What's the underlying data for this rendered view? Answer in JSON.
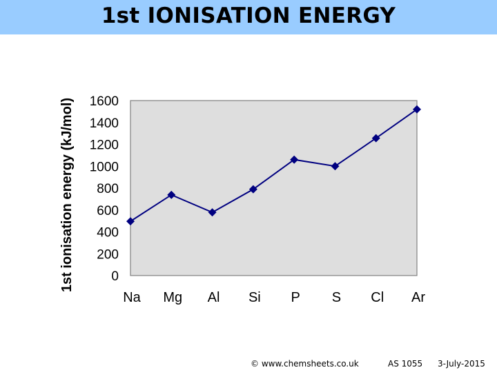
{
  "title": "1st IONISATION ENERGY",
  "chart_data": {
    "type": "line",
    "categories": [
      "Na",
      "Mg",
      "Al",
      "Si",
      "P",
      "S",
      "Cl",
      "Ar"
    ],
    "values": [
      496,
      738,
      578,
      789,
      1060,
      1000,
      1256,
      1520
    ],
    "ylabel": "1st ionisation energy (kJ/mol)",
    "xlabel": "",
    "ylim": [
      0,
      1600
    ],
    "yticks": [
      0,
      200,
      400,
      600,
      800,
      1000,
      1200,
      1400,
      1600
    ],
    "grid": false,
    "legend": "none",
    "marker": "diamond",
    "line_color": "#000080",
    "plot_background": "#dedede"
  },
  "footer": {
    "copyright": "© www.chemsheets.co.uk",
    "code": "AS 1055",
    "date": "3-July-2015"
  }
}
